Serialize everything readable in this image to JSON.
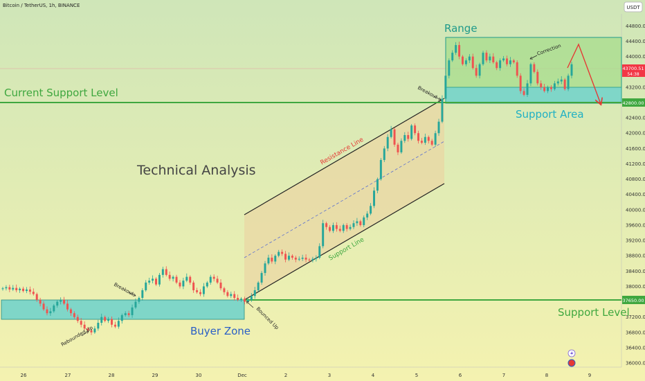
{
  "header": {
    "symbol": "Bitcoin / TetherUS, 1h, BINANCE",
    "currency": "USDT"
  },
  "colors": {
    "bg_top": "#cfe6b8",
    "bg_bottom": "#f4f2b0",
    "up": "#26a69a",
    "down": "#ef5350",
    "support_green": "#3fa73f",
    "zone_teal": "#7fd6c8",
    "channel_fill": "#e9d7a4",
    "range_fill": "#a7dc8c",
    "price_badge": "#f23645"
  },
  "chart_data": {
    "type": "candlestick",
    "y_ticks": [
      "44800.00",
      "44400.00",
      "44000.00",
      "43200.00",
      "42400.00",
      "42000.00",
      "41600.00",
      "41200.00",
      "40800.00",
      "40400.00",
      "40000.00",
      "39600.00",
      "39200.00",
      "38800.00",
      "38400.00",
      "38000.00",
      "37200.00",
      "36800.00",
      "36400.00",
      "36000.00"
    ],
    "ylim": [
      35900,
      45200
    ],
    "x_labels": [
      "26",
      "27",
      "28",
      "29",
      "30",
      "Dec",
      "2",
      "3",
      "4",
      "5",
      "6",
      "7",
      "8",
      "9"
    ],
    "last_price": "43700.51",
    "countdown": "54:38",
    "levels": [
      {
        "name": "Current Support Level",
        "price": 42800,
        "badge": "42800.00"
      },
      {
        "name": "Support Level",
        "price": 37650,
        "badge": "37650.00"
      }
    ],
    "zones": [
      {
        "name": "Buyer Zone",
        "from": 37100,
        "to": 37650
      },
      {
        "name": "Support Area",
        "from": 42800,
        "to": 43150
      },
      {
        "name": "Range",
        "from": 42800,
        "to": 44500
      }
    ],
    "channel": {
      "resistance_label": "Resistance Line",
      "support_label": "Support Line"
    },
    "annotations": {
      "title": "Technical Analysis",
      "range": "Range",
      "current_support": "Current Support Level",
      "support_area": "Support Area",
      "buyer_zone": "Buyer Zone",
      "support_level": "Support Level",
      "rebounded_up": "Rebounded Up",
      "breakout_1": "Breakout",
      "bounced_up": "Bounced Up",
      "breakout_2": "Breakout",
      "correction": "Correction"
    },
    "closes": [
      37950,
      37980,
      37920,
      37960,
      37900,
      37940,
      37880,
      37920,
      37860,
      37800,
      37650,
      37550,
      37400,
      37300,
      37350,
      37500,
      37600,
      37650,
      37550,
      37400,
      37300,
      37200,
      37100,
      37000,
      36900,
      36850,
      36800,
      36900,
      37050,
      37200,
      37100,
      37150,
      37000,
      36950,
      37100,
      37250,
      37300,
      37250,
      37450,
      37600,
      37700,
      37900,
      38100,
      38150,
      38200,
      38050,
      38300,
      38450,
      38300,
      38200,
      38250,
      38100,
      38000,
      38150,
      38250,
      38100,
      37900,
      37850,
      37800,
      38000,
      38100,
      38250,
      38200,
      38100,
      37950,
      37850,
      37750,
      37800,
      37700,
      37650,
      37680,
      37600,
      37650,
      37750,
      37900,
      38100,
      38350,
      38600,
      38750,
      38650,
      38800,
      38900,
      38850,
      38700,
      38800,
      38750,
      38700,
      38720,
      38750,
      38700,
      38680,
      38720,
      38750,
      39050,
      39650,
      39550,
      39450,
      39600,
      39500,
      39450,
      39600,
      39500,
      39550,
      39650,
      39700,
      39600,
      39800,
      39900,
      40100,
      40500,
      40800,
      41300,
      41600,
      41900,
      42100,
      41700,
      41500,
      41800,
      41950,
      41850,
      42200,
      42000,
      41800,
      41750,
      41900,
      41800,
      41700,
      42000,
      42300,
      42900,
      43500,
      43900,
      44100,
      44300,
      44000,
      43800,
      43900,
      44000,
      43700,
      43500,
      43800,
      44100,
      43900,
      44000,
      43850,
      43700,
      43900,
      43950,
      43800,
      43900,
      43850,
      43500,
      43100,
      43000,
      43300,
      43800,
      43600,
      43300,
      43200,
      43100,
      43200,
      43150,
      43300,
      43350,
      43400,
      43150,
      43500,
      43800
    ]
  }
}
